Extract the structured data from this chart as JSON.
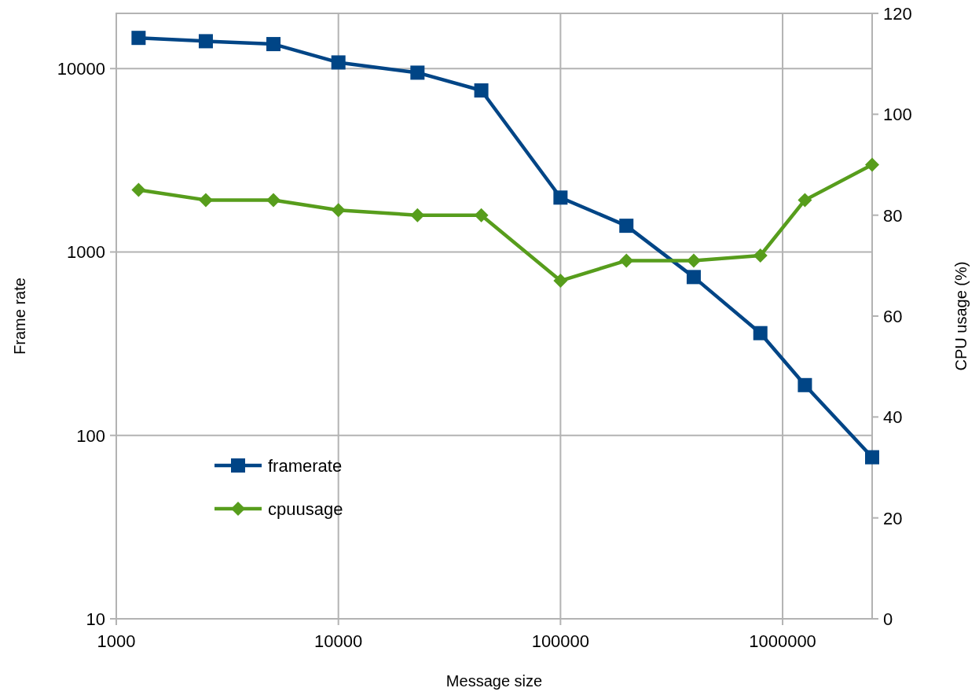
{
  "chart_data": {
    "type": "line",
    "xlabel": "Message size",
    "ylabel": "Frame rate",
    "y2label": "CPU usage (%)",
    "log": "xy",
    "grid": true,
    "legend": "bottom left",
    "xlim": [
      1000,
      2530000
    ],
    "xticks": [
      1000,
      10000,
      100000,
      1000000
    ],
    "ylim": [
      10,
      20000
    ],
    "yticks": [
      10,
      100,
      1000,
      10000
    ],
    "y2lim": [
      0,
      120
    ],
    "y2ticks": [
      0,
      20,
      40,
      60,
      80,
      100,
      120
    ],
    "x": [
      1260,
      2530,
      5100,
      10000,
      22700,
      44000,
      100000,
      198000,
      398000,
      794000,
      1260000,
      2530000
    ],
    "series": [
      {
        "name": "framerate",
        "color": "#004586",
        "marker": "square",
        "values": [
          14700,
          14100,
          13600,
          10800,
          9500,
          7600,
          1980,
          1390,
          730,
          361,
          188,
          76
        ]
      },
      {
        "name": "cpuusage",
        "color": "#579d1c",
        "marker": "diamond",
        "axis": "y2",
        "values": [
          85,
          83,
          83,
          81,
          80,
          80,
          67,
          71,
          71,
          72,
          83,
          90
        ]
      }
    ]
  }
}
